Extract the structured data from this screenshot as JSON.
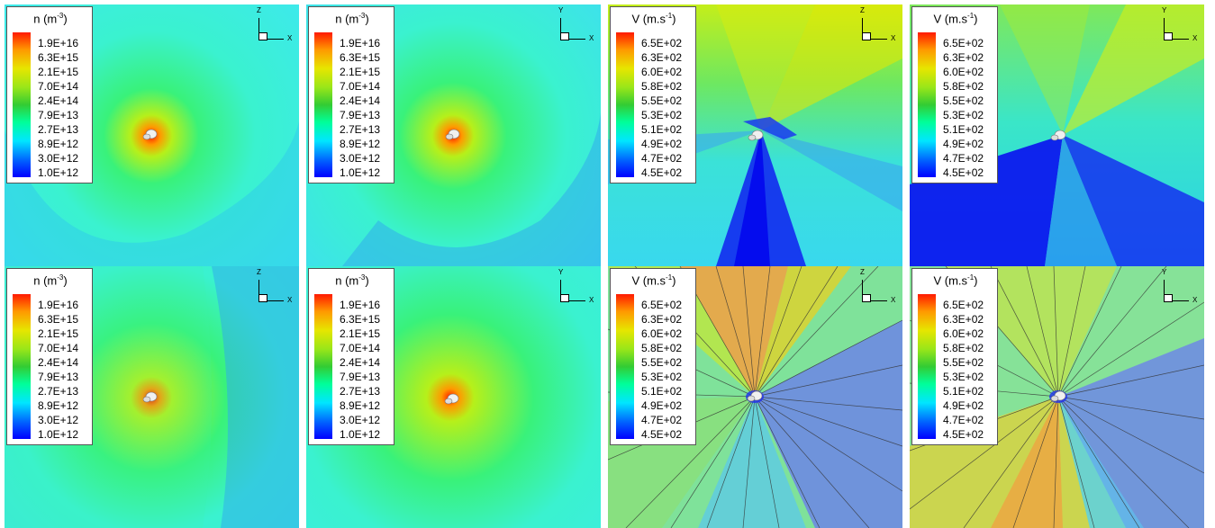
{
  "colorscale": [
    "#0000ff",
    "#0066ff",
    "#00e6ff",
    "#00ff99",
    "#33cc33",
    "#99e619",
    "#e6e600",
    "#ff9900",
    "#ff1a00"
  ],
  "density_legend": {
    "title": "n (m",
    "title_sup": "-3",
    "title_end": ")",
    "ticks": [
      "1.9E+16",
      "6.3E+15",
      "2.1E+15",
      "7.0E+14",
      "2.4E+14",
      "7.9E+13",
      "2.7E+13",
      "8.9E+12",
      "3.0E+12",
      "1.0E+12"
    ]
  },
  "velocity_legend": {
    "title": "V (m.s",
    "title_sup": "-1",
    "title_end": ")",
    "ticks": [
      "6.5E+02",
      "6.3E+02",
      "6.0E+02",
      "5.8E+02",
      "5.5E+02",
      "5.3E+02",
      "5.1E+02",
      "4.9E+02",
      "4.7E+02",
      "4.5E+02"
    ]
  },
  "panels": [
    {
      "field": "density",
      "vertical_axis": "Z",
      "horizontal_axis": "X",
      "background": "#3df0e6"
    },
    {
      "field": "density",
      "vertical_axis": "Y",
      "horizontal_axis": "X",
      "background": "#3ee8e8"
    },
    {
      "field": "velocity",
      "vertical_axis": "Z",
      "horizontal_axis": "X",
      "background": "#36e3d8"
    },
    {
      "field": "velocity",
      "vertical_axis": "Y",
      "horizontal_axis": "X",
      "background": "#2cd0c8"
    },
    {
      "field": "density",
      "vertical_axis": "Z",
      "horizontal_axis": "X",
      "background": "#35eeee"
    },
    {
      "field": "density",
      "vertical_axis": "Y",
      "horizontal_axis": "X",
      "background": "#3de8e0"
    },
    {
      "field": "velocity",
      "vertical_axis": "Z",
      "horizontal_axis": "X",
      "background": "#6ee09a"
    },
    {
      "field": "velocity",
      "vertical_axis": "Y",
      "horizontal_axis": "X",
      "background": "#7ae0a0"
    }
  ]
}
